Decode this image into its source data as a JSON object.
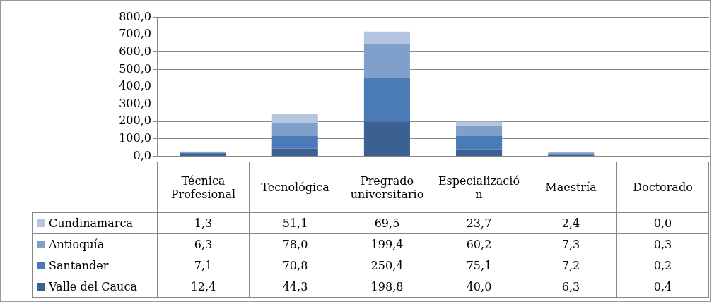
{
  "chart_data": {
    "type": "bar",
    "stacked": true,
    "categories": [
      "Técnica Profesional",
      "Tecnológica",
      "Pregrado universitario",
      "Especialización",
      "Maestría",
      "Doctorado"
    ],
    "series": [
      {
        "name": "Valle del Cauca",
        "color": "#3b6193",
        "values": [
          12.4,
          44.3,
          198.8,
          40.0,
          6.3,
          0.4
        ],
        "value_labels": [
          "12,4",
          "44,3",
          "198,8",
          "40,0",
          "6,3",
          "0,4"
        ]
      },
      {
        "name": "Santander",
        "color": "#4a7bb7",
        "values": [
          7.1,
          70.8,
          250.4,
          75.1,
          7.2,
          0.2
        ],
        "value_labels": [
          "7,1",
          "70,8",
          "250,4",
          "75,1",
          "7,2",
          "0,2"
        ]
      },
      {
        "name": "Antioquía",
        "color": "#809fcb",
        "values": [
          6.3,
          78.0,
          199.4,
          60.2,
          7.3,
          0.3
        ],
        "value_labels": [
          "6,3",
          "78,0",
          "199,4",
          "60,2",
          "7,3",
          "0,3"
        ]
      },
      {
        "name": "Cundinamarca",
        "color": "#b5c4df",
        "values": [
          1.3,
          51.1,
          69.5,
          23.7,
          2.4,
          0.0
        ],
        "value_labels": [
          "1,3",
          "51,1",
          "69,5",
          "23,7",
          "2,4",
          "0,0"
        ]
      }
    ],
    "ylim": [
      0,
      800
    ],
    "yticks": [
      {
        "value": 0,
        "label": "0,0"
      },
      {
        "value": 100,
        "label": "100,0"
      },
      {
        "value": 200,
        "label": "200,0"
      },
      {
        "value": 300,
        "label": "300,0"
      },
      {
        "value": 400,
        "label": "400,0"
      },
      {
        "value": 500,
        "label": "500,0"
      },
      {
        "value": 600,
        "label": "600,0"
      },
      {
        "value": 700,
        "label": "700,0"
      },
      {
        "value": 800,
        "label": "800,0"
      }
    ],
    "grid": "y",
    "legend": "bottom"
  }
}
